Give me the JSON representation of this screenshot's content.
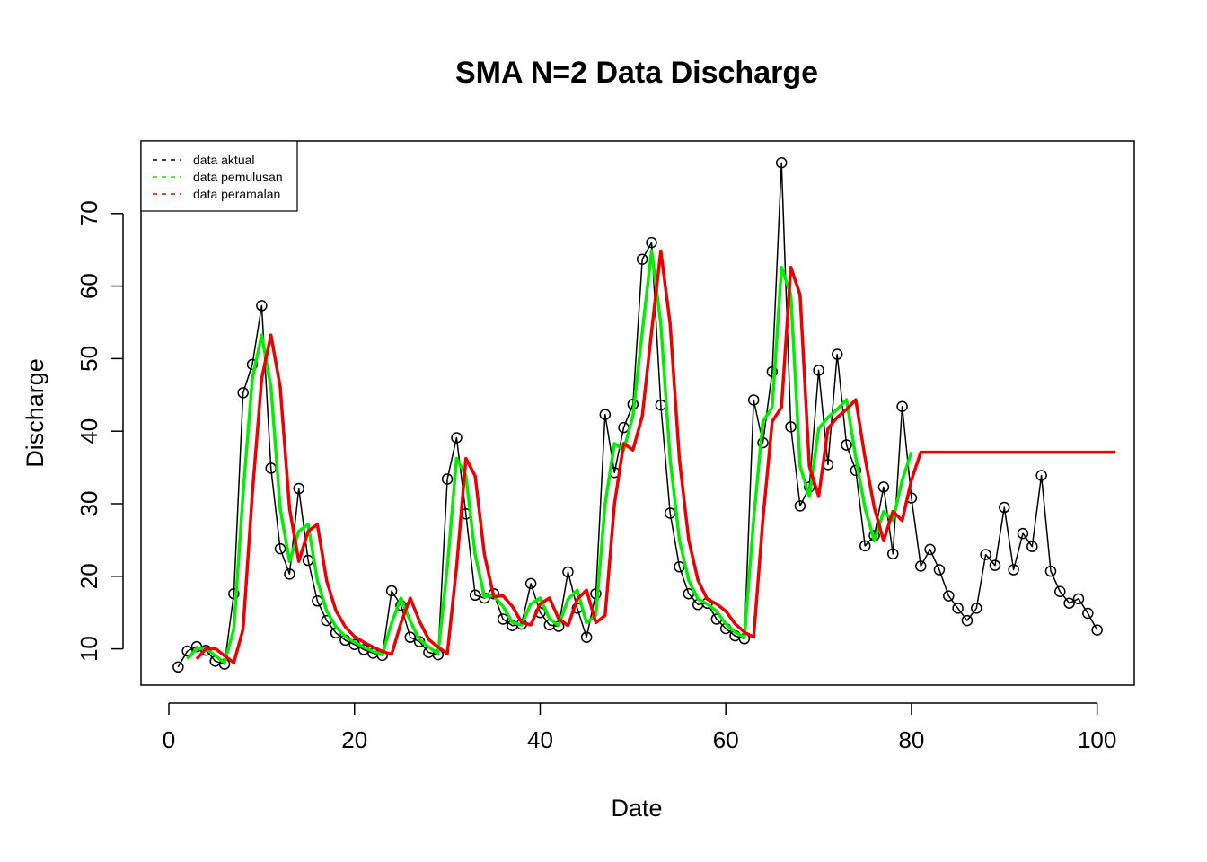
{
  "chart_data": {
    "type": "line",
    "title": "SMA N=2 Data Discharge",
    "xlabel": "Date",
    "ylabel": "Discharge",
    "xlim": [
      -3,
      104
    ],
    "ylim": [
      5,
      80
    ],
    "xticks": [
      0,
      20,
      40,
      60,
      80,
      100
    ],
    "yticks": [
      10,
      20,
      30,
      40,
      50,
      60,
      70
    ],
    "legend_position": "top-left",
    "legend": [
      "data aktual",
      "data pemulusan",
      "data peramalan"
    ],
    "colors": {
      "actual": "#000000",
      "smooth": "#00ee00",
      "forecast": "#ee0000"
    },
    "series": [
      {
        "name": "data aktual",
        "style": "points-and-line",
        "x": [
          1,
          2,
          3,
          4,
          5,
          6,
          7,
          8,
          9,
          10,
          11,
          12,
          13,
          14,
          15,
          16,
          17,
          18,
          19,
          20,
          21,
          22,
          23,
          24,
          25,
          26,
          27,
          28,
          29,
          30,
          31,
          32,
          33,
          34,
          35,
          36,
          37,
          38,
          39,
          40,
          41,
          42,
          43,
          44,
          45,
          46,
          47,
          48,
          49,
          50,
          51,
          52,
          53,
          54,
          55,
          56,
          57,
          58,
          59,
          60,
          61,
          62,
          63,
          64,
          65,
          66,
          67,
          68,
          69,
          70,
          71,
          72,
          73,
          74,
          75,
          76,
          77,
          78,
          79,
          80,
          81,
          82,
          83,
          84,
          85,
          86,
          87,
          88,
          89,
          90,
          91,
          92,
          93,
          94,
          95,
          96,
          97,
          98,
          99,
          100
        ],
        "values": [
          7.5,
          9.7,
          10.3,
          9.8,
          8.3,
          7.9,
          17.6,
          45.3,
          49.2,
          57.3,
          34.9,
          23.8,
          20.3,
          32.1,
          22.2,
          16.6,
          13.9,
          12.2,
          11.2,
          10.6,
          9.9,
          9.4,
          9.1,
          18.0,
          16.0,
          11.6,
          11.0,
          9.5,
          9.2,
          33.4,
          39.1,
          28.6,
          17.4,
          17.0,
          17.6,
          14.1,
          13.2,
          13.4,
          19.0,
          15.0,
          13.3,
          13.1,
          20.6,
          15.6,
          11.6,
          17.6,
          42.3,
          34.3,
          40.5,
          43.7,
          63.7,
          66.0,
          43.6,
          28.7,
          21.3,
          17.6,
          16.1,
          16.3,
          14.1,
          12.8,
          11.8,
          11.4,
          44.3,
          38.4,
          48.2,
          77.0,
          40.6,
          29.7,
          32.3,
          48.4,
          35.4,
          50.6,
          38.1,
          34.6,
          24.2,
          25.6,
          32.3,
          23.1,
          43.4,
          30.8,
          21.4,
          23.7,
          20.9,
          17.3,
          15.6,
          13.9,
          15.6,
          23.0,
          21.5,
          29.5,
          20.9,
          25.9,
          24.1,
          33.9,
          20.7,
          17.9,
          16.3,
          16.9,
          14.9,
          12.6
        ]
      },
      {
        "name": "data pemulusan",
        "style": "line",
        "x": [
          2,
          3,
          4,
          5,
          6,
          7,
          8,
          9,
          10,
          11,
          12,
          13,
          14,
          15,
          16,
          17,
          18,
          19,
          20,
          21,
          22,
          23,
          24,
          25,
          26,
          27,
          28,
          29,
          30,
          31,
          32,
          33,
          34,
          35,
          36,
          37,
          38,
          39,
          40,
          41,
          42,
          43,
          44,
          45,
          46,
          47,
          48,
          49,
          50,
          51,
          52,
          53,
          54,
          55,
          56,
          57,
          58,
          59,
          60,
          61,
          62,
          63,
          64,
          65,
          66,
          67,
          68,
          69,
          70,
          71,
          72,
          73,
          74,
          75,
          76,
          77,
          78,
          79,
          80
        ],
        "values": [
          8.6,
          10.0,
          10.05,
          9.05,
          8.1,
          12.75,
          31.45,
          47.25,
          53.25,
          46.1,
          29.35,
          22.05,
          26.2,
          27.15,
          19.4,
          15.25,
          13.05,
          11.7,
          10.9,
          10.25,
          9.65,
          9.25,
          13.55,
          17.0,
          13.8,
          11.3,
          10.25,
          9.35,
          21.3,
          36.25,
          33.85,
          23.0,
          17.2,
          17.3,
          15.85,
          13.65,
          13.3,
          16.2,
          17.0,
          14.15,
          13.2,
          16.85,
          18.1,
          13.6,
          14.6,
          29.95,
          38.3,
          37.4,
          42.1,
          53.7,
          64.85,
          54.8,
          36.15,
          25.0,
          19.45,
          16.85,
          16.2,
          15.2,
          13.45,
          12.3,
          11.6,
          27.85,
          41.35,
          43.3,
          62.6,
          58.8,
          35.15,
          31.0,
          40.35,
          41.9,
          43.0,
          44.35,
          36.35,
          29.4,
          24.9,
          28.95,
          27.7,
          33.25,
          37.1
        ]
      },
      {
        "name": "data peramalan",
        "style": "line",
        "x": [
          3,
          4,
          5,
          6,
          7,
          8,
          9,
          10,
          11,
          12,
          13,
          14,
          15,
          16,
          17,
          18,
          19,
          20,
          21,
          22,
          23,
          24,
          25,
          26,
          27,
          28,
          29,
          30,
          31,
          32,
          33,
          34,
          35,
          36,
          37,
          38,
          39,
          40,
          41,
          42,
          43,
          44,
          45,
          46,
          47,
          48,
          49,
          50,
          51,
          52,
          53,
          54,
          55,
          56,
          57,
          58,
          59,
          60,
          61,
          62,
          63,
          64,
          65,
          66,
          67,
          68,
          69,
          70,
          71,
          72,
          73,
          74,
          75,
          76,
          77,
          78,
          79,
          80,
          81,
          82,
          83,
          84,
          85,
          86,
          87,
          88,
          89,
          90,
          91,
          92,
          93,
          94,
          95,
          96,
          97,
          98,
          99,
          100,
          101,
          102
        ],
        "values": [
          8.6,
          10.0,
          10.05,
          9.05,
          8.1,
          12.75,
          31.45,
          47.25,
          53.25,
          46.1,
          29.35,
          22.05,
          26.2,
          27.15,
          19.4,
          15.25,
          13.05,
          11.7,
          10.9,
          10.25,
          9.65,
          9.25,
          13.55,
          17.0,
          13.8,
          11.3,
          10.25,
          9.35,
          21.3,
          36.25,
          33.85,
          23.0,
          17.2,
          17.3,
          15.85,
          13.65,
          13.3,
          16.2,
          17.0,
          14.15,
          13.2,
          16.85,
          18.1,
          13.6,
          14.6,
          29.95,
          38.3,
          37.4,
          42.1,
          53.7,
          64.85,
          54.8,
          36.15,
          25.0,
          19.45,
          16.85,
          16.2,
          15.2,
          13.45,
          12.3,
          11.6,
          27.85,
          41.35,
          43.3,
          62.6,
          58.8,
          35.15,
          31.0,
          40.35,
          41.9,
          43.0,
          44.35,
          36.35,
          29.4,
          24.9,
          28.95,
          27.7,
          33.25,
          37.1,
          37.1,
          37.1,
          37.1,
          37.1,
          37.1,
          37.1,
          37.1,
          37.1,
          37.1,
          37.1,
          37.1,
          37.1,
          37.1,
          37.1,
          37.1,
          37.1,
          37.1,
          37.1,
          37.1,
          37.1,
          37.1
        ]
      }
    ]
  }
}
